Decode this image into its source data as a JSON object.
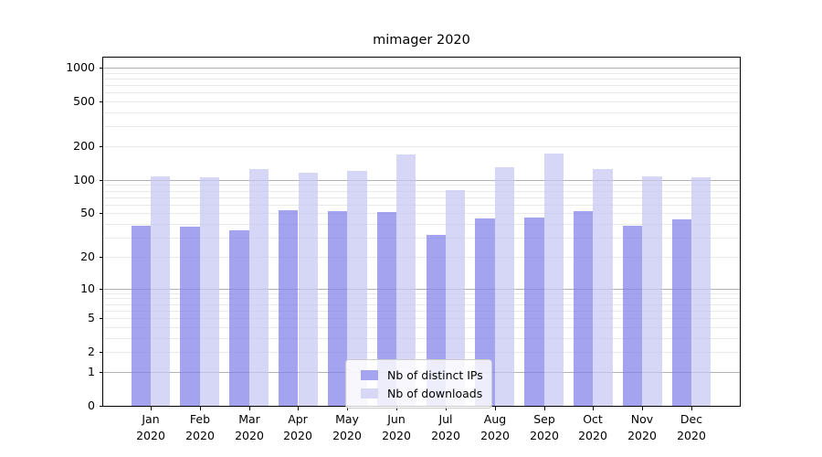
{
  "title": "mimager 2020",
  "chart_data": {
    "type": "bar",
    "title": "mimager 2020",
    "categories": [
      "Jan 2020",
      "Feb 2020",
      "Mar 2020",
      "Apr 2020",
      "May 2020",
      "Jun 2020",
      "Jul 2020",
      "Aug 2020",
      "Sep 2020",
      "Oct 2020",
      "Nov 2020",
      "Dec 2020"
    ],
    "series": [
      {
        "name": "Nb of distinct IPs",
        "values": [
          39,
          38,
          35,
          53,
          52,
          51,
          32,
          45,
          46,
          52,
          39,
          44
        ],
        "color": "#a4a4f0",
        "fill": "rgba(127,127,234,0.72)"
      },
      {
        "name": "Nb of downloads",
        "values": [
          108,
          105,
          126,
          116,
          120,
          169,
          81,
          130,
          173,
          125,
          107,
          105
        ],
        "color": "#d7d7f6",
        "fill": "rgba(198,198,243,0.72)"
      }
    ],
    "yscale": "log1p",
    "yticks": [
      0,
      1,
      2,
      5,
      10,
      20,
      50,
      100,
      200,
      500,
      1000
    ],
    "ylim": [
      0,
      1230
    ],
    "xlabel": "",
    "ylabel": "",
    "grid": "both",
    "grid_major_color": "#b2b2b2",
    "grid_minor_color": "#e9e9e9",
    "legend_position": "lower center",
    "background": "#ffffff"
  }
}
